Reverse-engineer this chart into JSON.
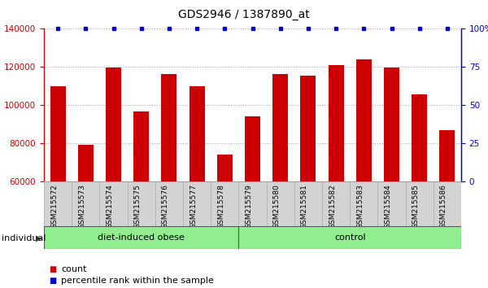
{
  "title": "GDS2946 / 1387890_at",
  "samples": [
    "GSM215572",
    "GSM215573",
    "GSM215574",
    "GSM215575",
    "GSM215576",
    "GSM215577",
    "GSM215578",
    "GSM215579",
    "GSM215580",
    "GSM215581",
    "GSM215582",
    "GSM215583",
    "GSM215584",
    "GSM215585",
    "GSM215586"
  ],
  "counts": [
    110000,
    79000,
    119500,
    96500,
    116500,
    110000,
    74000,
    94000,
    116500,
    115500,
    121000,
    124000,
    119500,
    105500,
    87000
  ],
  "bar_color": "#cc0000",
  "dot_color": "#0000cc",
  "ylim_left": [
    60000,
    140000
  ],
  "ylim_right": [
    0,
    100
  ],
  "yticks_left": [
    60000,
    80000,
    100000,
    120000,
    140000
  ],
  "yticks_right": [
    0,
    25,
    50,
    75,
    100
  ],
  "yticklabels_right": [
    "0",
    "25",
    "50",
    "75",
    "100%"
  ],
  "groups": [
    {
      "label": "diet-induced obese",
      "start": 0,
      "end": 6,
      "color": "#90ee90"
    },
    {
      "label": "control",
      "start": 7,
      "end": 14,
      "color": "#90ee90"
    }
  ],
  "group_divider": 6.5,
  "individual_label": "individual",
  "legend_count_label": "count",
  "legend_pct_label": "percentile rank within the sample",
  "tick_area_color": "#d3d3d3",
  "title_fontsize": 10,
  "tick_fontsize": 7.5,
  "label_fontsize": 8,
  "grid_color": "#aaaaaa",
  "grid_style": ":"
}
